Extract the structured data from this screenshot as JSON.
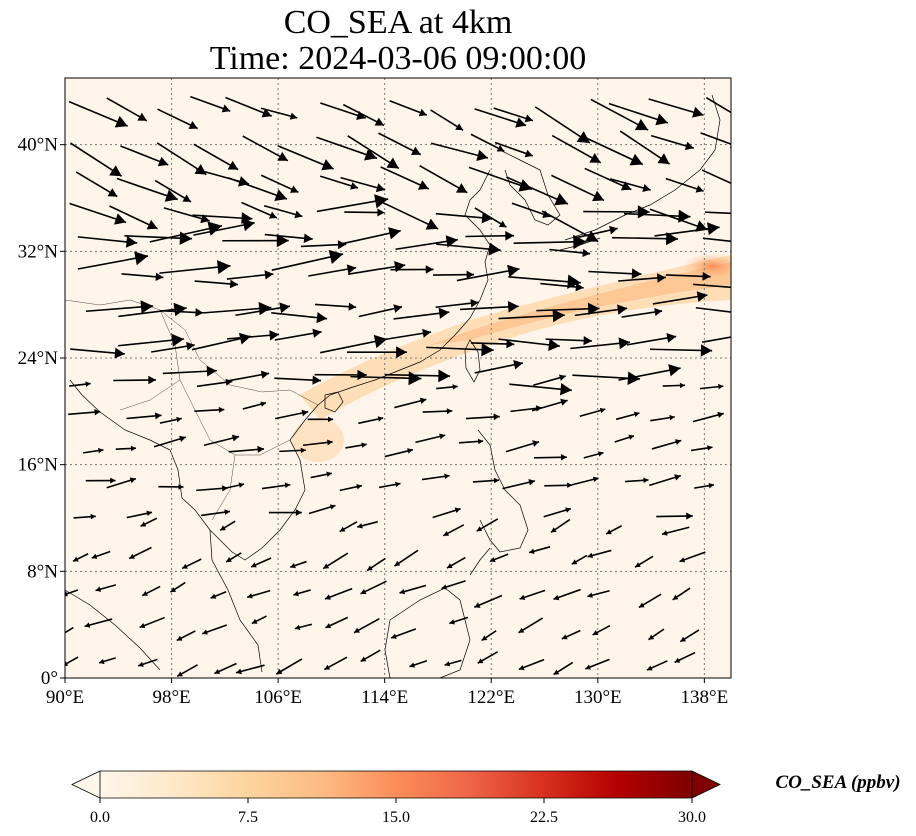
{
  "title": {
    "line1": "CO_SEA at 4km",
    "line2": "Time: 2024-03-06 09:00:00"
  },
  "map": {
    "lon_range": [
      90,
      140
    ],
    "lat_range": [
      0,
      45
    ],
    "x_ticks": [
      "90°E",
      "98°E",
      "106°E",
      "114°E",
      "122°E",
      "130°E",
      "138°E"
    ],
    "x_tick_values": [
      90,
      98,
      106,
      114,
      122,
      130,
      138
    ],
    "y_ticks": [
      "0°",
      "8°N",
      "16°N",
      "24°N",
      "32°N",
      "40°N"
    ],
    "y_tick_values": [
      0,
      8,
      16,
      24,
      32,
      40
    ],
    "gridlines": "dotted",
    "background_color": "#fff5eb",
    "coastline_color": "#000000",
    "plume_color": "#fdb97d"
  },
  "colorbar": {
    "label": "CO_SEA (ppbv)",
    "ticks": [
      "0.0",
      "7.5",
      "15.0",
      "22.5",
      "30.0"
    ],
    "tick_values": [
      0,
      7.5,
      15,
      22.5,
      30
    ],
    "range": [
      0,
      30
    ],
    "extend": "both",
    "colormap": "OrRd",
    "colors": [
      "#fff7ec",
      "#fee8c8",
      "#fdd49e",
      "#fdbb84",
      "#fc8d59",
      "#ef6548",
      "#d7301f",
      "#b30000",
      "#7f0000"
    ]
  },
  "wind_field": {
    "arrow_color": "#000000",
    "regimes": [
      {
        "region": "north",
        "lat_min": 35,
        "lat_max": 45,
        "u": 1.0,
        "v": -0.45,
        "speed": 1.0
      },
      {
        "region": "mid",
        "lat_min": 22,
        "lat_max": 35,
        "u": 1.0,
        "v": 0.05,
        "speed": 1.0
      },
      {
        "region": "subtropic",
        "lat_min": 12,
        "lat_max": 22,
        "u": 1.0,
        "v": 0.15,
        "speed": 0.55
      },
      {
        "region": "tropic",
        "lat_min": 0,
        "lat_max": 12,
        "u": -1.0,
        "v": -0.45,
        "speed": 0.45
      }
    ]
  }
}
